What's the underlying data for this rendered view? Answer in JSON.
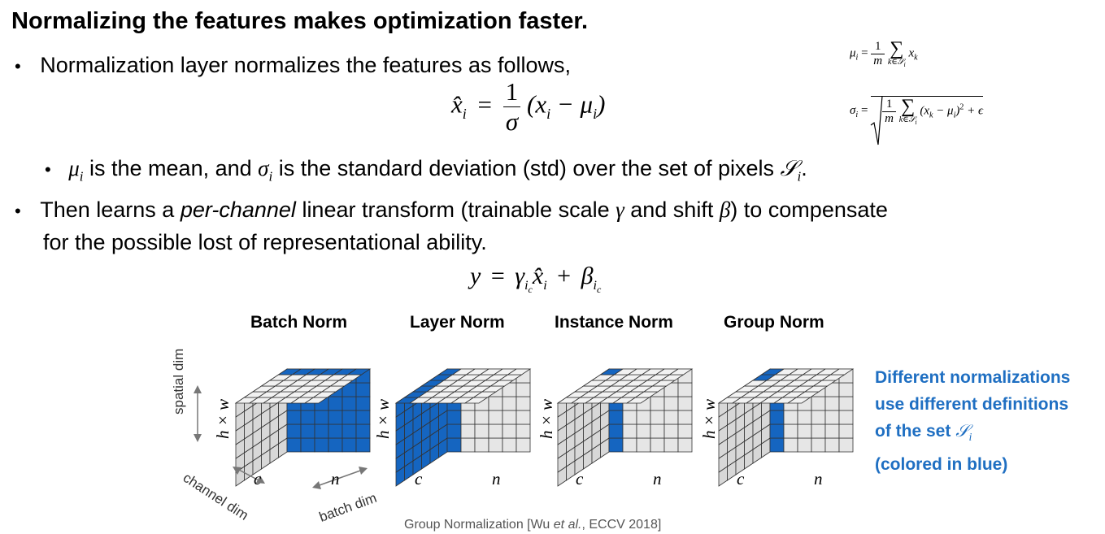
{
  "title": "Normalizing the features makes optimization faster.",
  "bullets": {
    "b1": "Normalization layer normalizes the features as follows,",
    "b2_mu": "μ",
    "b2_a": " is the mean, and ",
    "b2_sigma": "σ",
    "b2_b": " is the standard deviation (std) over the set of pixels ",
    "b2_S": "𝒮",
    "b2_end": ".",
    "b3_a": "Then learns a ",
    "b3_italic": "per-channel",
    "b3_b": " linear transform (trainable scale ",
    "b3_gamma": "γ",
    "b3_c": " and shift ",
    "b3_beta": "β",
    "b3_d": ") to compensate",
    "b3_line2": "for the possible lost of representational ability.",
    "bullet_glyph": "•"
  },
  "equations": {
    "main": {
      "lhs": "x̂",
      "sub": "i",
      "eq": "=",
      "num": "1",
      "den": "σ",
      "rhs": "(x",
      "rhs_sub": "i",
      "rhs_mid": " − μ",
      "rhs_sub2": "i",
      "rhs_end": ")"
    },
    "mean": {
      "lhs": "μ",
      "sub": "i",
      "eq": "=",
      "num": "1",
      "den": "m",
      "sum": "∑",
      "sum_sub": "k∈𝒮",
      "sum_sub_i": "i",
      "x": "x",
      "x_sub": "k"
    },
    "std": {
      "lhs": "σ",
      "sub": "i",
      "eq": "=",
      "num": "1",
      "den": "m",
      "sum": "∑",
      "sum_sub": "k∈𝒮",
      "sum_sub_i": "i",
      "body": "(x",
      "body_sub": "k",
      "body_mid": " − μ",
      "body_sub2": "i",
      "body_end": ")",
      "sq": "2",
      "plus": " + ϵ"
    },
    "affine": {
      "y": "y",
      "eq": "=",
      "gamma": "γ",
      "g_sub": "i",
      "g_subsub": "c",
      "xhat": "x̂",
      "x_sub": "i",
      "plus": "+",
      "beta": "β",
      "b_sub": "i",
      "b_subsub": "c"
    }
  },
  "cubes": [
    {
      "title": "Batch Norm",
      "h": "h × w",
      "c": "c",
      "n": "n"
    },
    {
      "title": "Layer Norm",
      "h": "h × w",
      "c": "c",
      "n": "n"
    },
    {
      "title": "Instance Norm",
      "h": "h × w",
      "c": "c",
      "n": "n"
    },
    {
      "title": "Group Norm",
      "h": "h × w",
      "c": "c",
      "n": "n"
    }
  ],
  "axes": {
    "spatial": "spatial dim",
    "channel": "channel dim",
    "batch": "batch dim"
  },
  "note": {
    "l1": "Different normalizations",
    "l2": "use different definitions",
    "l3": "of the set ",
    "l3_S": "𝒮",
    "l3_sub": "i",
    "l4": "(colored in blue)"
  },
  "citation": {
    "a": "Group Normalization [Wu ",
    "et_al": "et al.",
    "b": ", ECCV 2018]"
  },
  "colors": {
    "blue": "#1565c0",
    "gray": "#e6e6e6",
    "note": "#1f6fc2"
  }
}
